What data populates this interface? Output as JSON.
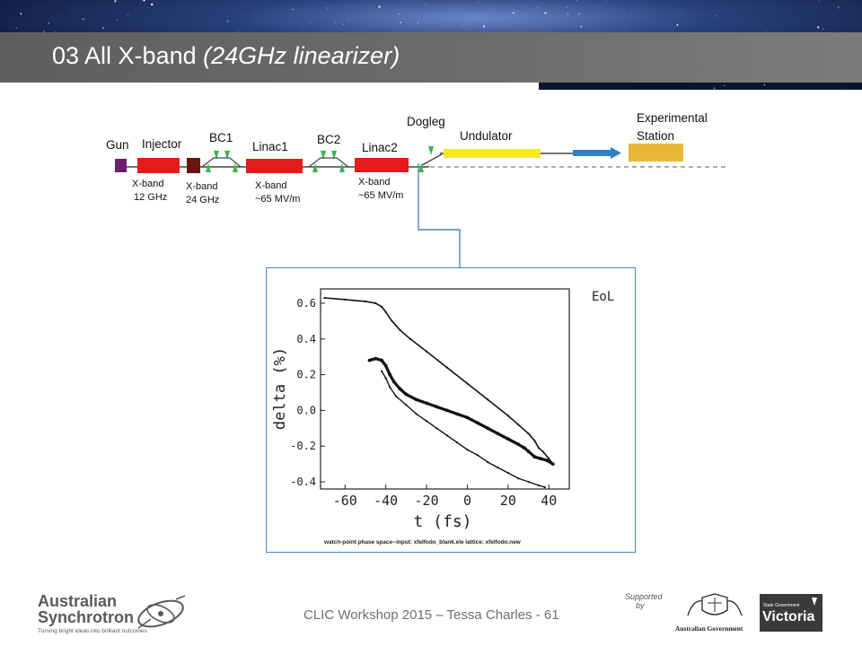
{
  "slide": {
    "title_main": "03 All X-band ",
    "title_sub": "(24GHz linearizer)"
  },
  "colors": {
    "title_bar": "#666666",
    "rf_structure": "#e31b1b",
    "gun": "#6e1f6e",
    "linearizer_24ghz": "#6b1414",
    "quad": "#3ab54a",
    "undulator": "#f5e72a",
    "photon_beam": "#2f80c8",
    "experimental_station": "#e8b839",
    "callout_line": "#4a86c8"
  },
  "beamline": {
    "labels": {
      "gun": "Gun",
      "injector": "Injector",
      "bc1": "BC1",
      "linac1": "Linac1",
      "bc2": "BC2",
      "linac2": "Linac2",
      "dogleg": "Dogleg",
      "undulator": "Undulator",
      "experimental_station_line1": "Experimental",
      "experimental_station_line2": "Station"
    },
    "specs": {
      "injector_line1": "X-band",
      "injector_line2": "12 GHz",
      "linearizer_line1": "X-band",
      "linearizer_line2": "24 GHz",
      "linac1_line1": "X-band",
      "linac1_line2": "~65 MV/m",
      "linac2_line1": "X-band",
      "linac2_line2": "~65 MV/m"
    }
  },
  "plot": {
    "corner_label": "EoL",
    "footer": "watch-point phase space--input: xfelfodo_blank.ele     lattice: xfelfodo.new"
  },
  "chart_data": {
    "type": "scatter",
    "xlabel": "t (fs)",
    "ylabel": "delta (%)",
    "xlim": [
      -72,
      50
    ],
    "ylim": [
      -0.44,
      0.68
    ],
    "xticks": [
      "-60",
      "-40",
      "-20",
      "0",
      "20",
      "40"
    ],
    "yticks": [
      "0.6",
      "0.4",
      "0.2",
      "0.0",
      "-0.2",
      "-0.4"
    ],
    "xtick_values": [
      -60,
      -40,
      -20,
      0,
      20,
      40
    ],
    "ytick_values": [
      0.6,
      0.4,
      0.2,
      0.0,
      -0.2,
      -0.4
    ],
    "series": [
      {
        "x": [
          -70,
          -60,
          -50,
          -45,
          -42,
          -40,
          -37,
          -33,
          -28,
          -20,
          -10,
          0,
          10,
          20,
          25,
          30,
          33,
          35,
          37,
          40,
          42
        ],
        "y": [
          0.63,
          0.62,
          0.61,
          0.6,
          0.58,
          0.55,
          0.5,
          0.45,
          0.4,
          0.33,
          0.24,
          0.15,
          0.06,
          -0.03,
          -0.08,
          -0.13,
          -0.17,
          -0.21,
          -0.23,
          -0.27,
          -0.3
        ]
      },
      {
        "x": [
          -48,
          -45,
          -42,
          -40,
          -38,
          -36,
          -33,
          -30,
          -25,
          -20,
          -15,
          -10,
          -5,
          0,
          5,
          10,
          15,
          20,
          25,
          28,
          30,
          33,
          36,
          39,
          42
        ],
        "y": [
          0.28,
          0.29,
          0.28,
          0.25,
          0.2,
          0.16,
          0.12,
          0.09,
          0.06,
          0.04,
          0.02,
          0.0,
          -0.02,
          -0.04,
          -0.07,
          -0.1,
          -0.13,
          -0.16,
          -0.19,
          -0.21,
          -0.23,
          -0.26,
          -0.27,
          -0.28,
          -0.3
        ]
      },
      {
        "x": [
          -42,
          -40,
          -38,
          -35,
          -30,
          -25,
          -20,
          -15,
          -10,
          -5,
          0,
          5,
          10,
          15,
          20,
          25,
          30,
          35,
          38
        ],
        "y": [
          0.22,
          0.18,
          0.13,
          0.08,
          0.03,
          -0.02,
          -0.06,
          -0.1,
          -0.14,
          -0.18,
          -0.22,
          -0.25,
          -0.29,
          -0.32,
          -0.35,
          -0.38,
          -0.4,
          -0.42,
          -0.43
        ]
      }
    ]
  },
  "footer": {
    "text": "CLIC Workshop 2015 – Tessa Charles - 61",
    "logo_line1": "Australian",
    "logo_line2": "Synchrotron",
    "logo_tagline": "Turning bright ideas into brilliant outcomes",
    "supported_line1": "Supported",
    "supported_line2": "by",
    "aus_gov_text": "Australian Government",
    "vic_small": "State Government",
    "vic_big": "Victoria"
  }
}
